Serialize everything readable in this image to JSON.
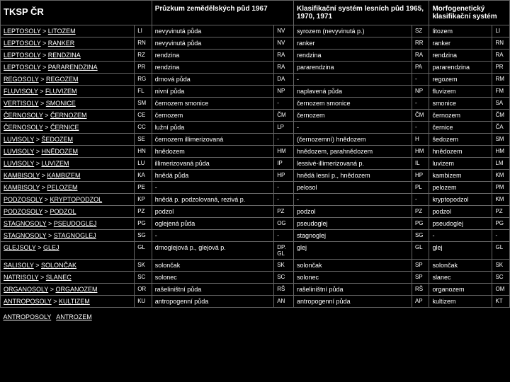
{
  "headers": {
    "h1": "TKSP ČR",
    "h2": "Průzkum zemědělských půd 1967",
    "h3": "Klasifikační systém lesních půd 1965, 1970, 1971",
    "h4": "Morfogenetický klasifikační systém"
  },
  "rows": [
    {
      "g": "LEPTOSOLY",
      "t": "LITOZEM",
      "c1": "LI",
      "p": "nevyvinutá půda",
      "c2": "NV",
      "k": "syrozem (nevyvinutá p.)",
      "c3": "SZ",
      "m": "litozem",
      "c4": "LI"
    },
    {
      "g": "LEPTOSOLY",
      "t": "RANKER",
      "c1": "RN",
      "p": "nevyvinutá půda",
      "c2": "NV",
      "k": "ranker",
      "c3": "RR",
      "m": "ranker",
      "c4": "RN"
    },
    {
      "g": "LEPTOSOLY",
      "t": "RENDZINA",
      "c1": "RZ",
      "p": "rendzina",
      "c2": "RA",
      "k": "rendzina",
      "c3": "RA",
      "m": "rendzina",
      "c4": "RA"
    },
    {
      "g": "LEPTOSOLY",
      "t": "PARARENDZINA",
      "c1": "PR",
      "p": "rendzina",
      "c2": "RA",
      "k": "pararendzina",
      "c3": "PA",
      "m": "pararendzina",
      "c4": "PR"
    },
    {
      "g": "REGOSOLY",
      "t": "REGOZEM",
      "c1": "RG",
      "p": "drnová půda",
      "c2": "DA",
      "k": "-",
      "c3": "-",
      "m": "regozem",
      "c4": "RM"
    },
    {
      "g": "FLUVISOLY",
      "t": "FLUVIZEM",
      "c1": "FL",
      "p": "nivní půda",
      "c2": "NP",
      "k": "naplavená půda",
      "c3": "NP",
      "m": "fluvizem",
      "c4": "FM"
    },
    {
      "g": "VERTISOLY",
      "t": "SMONICE",
      "c1": "SM",
      "p": "černozem smonice",
      "c2": "-",
      "k": "černozem smonice",
      "c3": "-",
      "m": "smonice",
      "c4": "SA"
    },
    {
      "g": "ČERNOSOLY",
      "t": "ČERNOZEM",
      "c1": "CE",
      "p": "černozem",
      "c2": "ČM",
      "k": "černozem",
      "c3": "ČM",
      "m": "černozem",
      "c4": "ČM"
    },
    {
      "g": "ČERNOSOLY",
      "t": "ČERNICE",
      "c1": "CC",
      "p": "lužní půda",
      "c2": "LP",
      "k": "-",
      "c3": "-",
      "m": "černice",
      "c4": "ČA"
    },
    {
      "g": "LUVISOLY",
      "t": "ŠEDOZEM",
      "c1": "SE",
      "p": "černozem illimerizovaná",
      "c2": "-",
      "k": "(černozemní) hnědozem",
      "c3": "H",
      "m": "šedozem",
      "c4": "SM"
    },
    {
      "g": "LUVISOLY",
      "t": "HNĚDOZEM",
      "c1": "HN",
      "p": "hnědozem",
      "c2": "HM",
      "k": "hnědozem, parahnědozem",
      "c3": "HM",
      "m": "hnědozem",
      "c4": "HM"
    },
    {
      "g": "LUVISOLY",
      "t": "LUVIZEM",
      "c1": "LU",
      "p": "illimerizovaná půda",
      "c2": "IP",
      "k": "lessivé-illimerizovaná p.",
      "c3": "IL",
      "m": "luvizem",
      "c4": "LM"
    },
    {
      "g": "KAMBISOLY",
      "t": "KAMBIZEM",
      "c1": "KA",
      "p": "hnědá půda",
      "c2": "HP",
      "k": "hnědá lesní p., hnědozem",
      "c3": "HP",
      "m": "kambizem",
      "c4": "KM"
    },
    {
      "g": "KAMBISOLY",
      "t": "PELOZEM",
      "c1": "PE",
      "p": "-",
      "c2": "-",
      "k": "pelosol",
      "c3": "PL",
      "m": "pelozem",
      "c4": "PM"
    },
    {
      "g": "PODZOSOLY",
      "t": "KRYPTOPODZOL",
      "c1": "KP",
      "p": "hnědá p. podzolovaná, rezivá p.",
      "c2": "-",
      "k": "-",
      "c3": "-",
      "m": "kryptopodzol",
      "c4": "KM"
    },
    {
      "g": "PODZOSOLY",
      "t": "PODZOL",
      "c1": "PZ",
      "p": "podzol",
      "c2": "PZ",
      "k": "podzol",
      "c3": "PZ",
      "m": "podzol",
      "c4": "PZ"
    },
    {
      "g": "STAGNOSOLY",
      "t": "PSEUDOGLEJ",
      "c1": "PG",
      "p": "oglejená půda",
      "c2": "OG",
      "k": "pseudoglej",
      "c3": "PG",
      "m": "pseudoglej",
      "c4": "PG"
    },
    {
      "g": "STAGNOSOLY",
      "t": "STAGNOGLEJ",
      "c1": "SG",
      "p": "-",
      "c2": "-",
      "k": "stagnoglej",
      "c3": "SG",
      "m": "-",
      "c4": "-"
    },
    {
      "g": "GLEJSOLY",
      "t": "GLEJ",
      "c1": "GL",
      "p": "drnoglejová p., glejová p.",
      "c2": "DP. GL",
      "k": "glej",
      "c3": "GL",
      "m": "glej",
      "c4": "GL"
    },
    {
      "g": "SALISOLY",
      "t": "SOLONČAK",
      "c1": "SK",
      "p": "solončak",
      "c2": "SK",
      "k": "solončak",
      "c3": "SP",
      "m": "solončak",
      "c4": "SK"
    },
    {
      "g": "NATRISOLY",
      "t": "SLANEC",
      "c1": "SC",
      "p": "solonec",
      "c2": "SC",
      "k": "solonec",
      "c3": "SP",
      "m": "slanec",
      "c4": "SC"
    },
    {
      "g": "ORGANOSOLY",
      "t": "ORGANOZEM",
      "c1": "OR",
      "p": "rašeliništní půda",
      "c2": "RŠ",
      "k": "rašeliništní půda",
      "c3": "RŠ",
      "m": "organozem",
      "c4": "OM"
    },
    {
      "g": "ANTROPOSOLY",
      "t": "KULTIZEM",
      "c1": "KU",
      "p": "antropogenní půda",
      "c2": "AN",
      "k": "antropogenní půda",
      "c3": "AP",
      "m": "kultizem",
      "c4": "KT"
    }
  ],
  "footer": {
    "g": "ANTROPOSOLY",
    "t": "ANTROZEM"
  }
}
